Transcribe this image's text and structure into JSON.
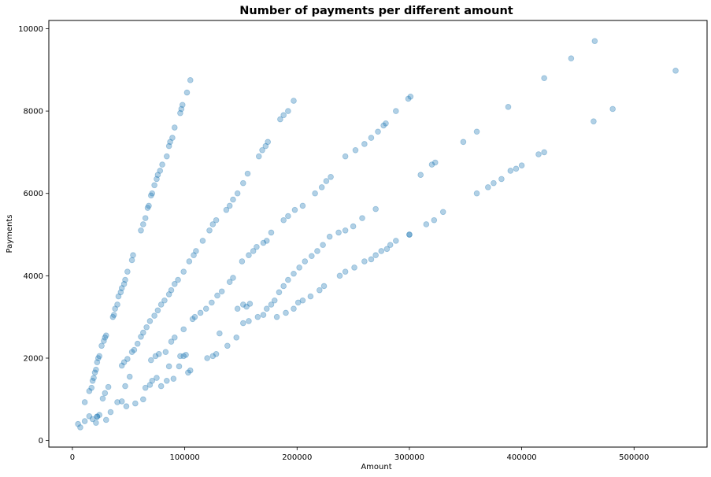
{
  "chart_data": {
    "type": "scatter",
    "title": "Number of payments per different amount",
    "xlabel": "Amount",
    "ylabel": "Payments",
    "xlim": [
      -21000,
      565000
    ],
    "ylim": [
      -160,
      10200
    ],
    "xticks": [
      0,
      100000,
      200000,
      300000,
      400000,
      500000
    ],
    "yticks": [
      0,
      2000,
      4000,
      6000,
      8000,
      10000
    ],
    "grid": false,
    "legend": "none",
    "point_color": "#1f77b4",
    "point_alpha": 0.35,
    "series": [
      {
        "points": [
          [
            5000,
            400
          ],
          [
            7000,
            320
          ],
          [
            11000,
            470
          ],
          [
            15000,
            590
          ],
          [
            18000,
            520
          ],
          [
            21000,
            430
          ],
          [
            22000,
            580
          ],
          [
            24000,
            620
          ],
          [
            11000,
            930
          ],
          [
            15000,
            1200
          ],
          [
            17000,
            1280
          ],
          [
            18000,
            1450
          ],
          [
            19000,
            1520
          ],
          [
            20000,
            1650
          ],
          [
            21000,
            1720
          ],
          [
            22000,
            1900
          ],
          [
            23000,
            2000
          ],
          [
            24000,
            2050
          ],
          [
            26000,
            2300
          ],
          [
            28000,
            2420
          ],
          [
            29000,
            2500
          ],
          [
            30000,
            2550
          ],
          [
            36000,
            3000
          ],
          [
            37000,
            3050
          ],
          [
            38000,
            3200
          ],
          [
            40000,
            3300
          ],
          [
            41000,
            3500
          ],
          [
            43000,
            3600
          ],
          [
            44000,
            3700
          ],
          [
            46000,
            3800
          ],
          [
            47000,
            3900
          ],
          [
            49000,
            4100
          ],
          [
            53000,
            4380
          ],
          [
            54000,
            4500
          ],
          [
            61000,
            5100
          ],
          [
            63000,
            5250
          ],
          [
            65000,
            5400
          ],
          [
            67000,
            5650
          ],
          [
            68000,
            5700
          ],
          [
            70000,
            5950
          ],
          [
            71000,
            6000
          ],
          [
            73000,
            6200
          ],
          [
            75000,
            6350
          ],
          [
            76000,
            6450
          ],
          [
            78000,
            6550
          ],
          [
            80000,
            6700
          ],
          [
            84000,
            6900
          ],
          [
            86000,
            7150
          ],
          [
            87000,
            7250
          ],
          [
            89000,
            7350
          ],
          [
            91000,
            7600
          ],
          [
            96000,
            7950
          ],
          [
            97000,
            8050
          ],
          [
            98000,
            8150
          ],
          [
            102000,
            8450
          ],
          [
            105000,
            8750
          ]
        ]
      },
      {
        "points": [
          [
            22000,
            580
          ],
          [
            27000,
            1020
          ],
          [
            29000,
            1150
          ],
          [
            32000,
            1300
          ],
          [
            34000,
            690
          ],
          [
            30000,
            500
          ],
          [
            44000,
            950
          ],
          [
            47000,
            1320
          ],
          [
            48000,
            830
          ],
          [
            51000,
            1550
          ],
          [
            53000,
            2150
          ],
          [
            55000,
            2200
          ],
          [
            58000,
            2350
          ],
          [
            61000,
            2520
          ],
          [
            63000,
            2620
          ],
          [
            66000,
            2750
          ],
          [
            69000,
            2900
          ],
          [
            73000,
            3030
          ],
          [
            76000,
            3160
          ],
          [
            79000,
            3300
          ],
          [
            82000,
            3400
          ],
          [
            86000,
            3550
          ],
          [
            88000,
            3650
          ],
          [
            91000,
            3800
          ],
          [
            94000,
            3900
          ],
          [
            99000,
            4100
          ],
          [
            104000,
            4350
          ],
          [
            108000,
            4500
          ],
          [
            110000,
            4600
          ],
          [
            116000,
            4850
          ],
          [
            122000,
            5100
          ],
          [
            125000,
            5250
          ],
          [
            128000,
            5350
          ],
          [
            137000,
            5600
          ],
          [
            140000,
            5700
          ],
          [
            143000,
            5850
          ],
          [
            147000,
            6000
          ],
          [
            152000,
            6250
          ],
          [
            156000,
            6480
          ],
          [
            166000,
            6900
          ],
          [
            169000,
            7050
          ],
          [
            172000,
            7150
          ],
          [
            174000,
            7250
          ],
          [
            185000,
            7800
          ],
          [
            188000,
            7900
          ],
          [
            192000,
            8000
          ],
          [
            197000,
            8250
          ],
          [
            44000,
            1820
          ],
          [
            46000,
            1900
          ],
          [
            49000,
            1980
          ]
        ]
      },
      {
        "points": [
          [
            40000,
            930
          ],
          [
            56000,
            900
          ],
          [
            63000,
            1000
          ],
          [
            65000,
            1280
          ],
          [
            69000,
            1350
          ],
          [
            71000,
            1450
          ],
          [
            75000,
            1520
          ],
          [
            79000,
            1320
          ],
          [
            84000,
            1450
          ],
          [
            86000,
            1800
          ],
          [
            90000,
            1500
          ],
          [
            96000,
            2050
          ],
          [
            99000,
            2050
          ],
          [
            101000,
            2080
          ],
          [
            95000,
            1800
          ],
          [
            103000,
            1650
          ],
          [
            105000,
            1700
          ],
          [
            70000,
            1950
          ],
          [
            74000,
            2050
          ],
          [
            77000,
            2100
          ],
          [
            83000,
            2150
          ],
          [
            88000,
            2400
          ],
          [
            91000,
            2500
          ],
          [
            99000,
            2700
          ],
          [
            107000,
            2950
          ],
          [
            109000,
            3000
          ],
          [
            114000,
            3100
          ],
          [
            119000,
            3200
          ],
          [
            124000,
            3350
          ],
          [
            129000,
            3520
          ],
          [
            133000,
            3620
          ],
          [
            140000,
            3850
          ],
          [
            143000,
            3950
          ],
          [
            151000,
            4350
          ],
          [
            157000,
            4500
          ],
          [
            161000,
            4600
          ],
          [
            164000,
            4700
          ],
          [
            170000,
            4800
          ],
          [
            173000,
            4850
          ],
          [
            177000,
            5050
          ],
          [
            188000,
            5350
          ],
          [
            192000,
            5450
          ],
          [
            198000,
            5600
          ],
          [
            205000,
            5700
          ],
          [
            216000,
            6000
          ],
          [
            222000,
            6150
          ],
          [
            226000,
            6300
          ],
          [
            230000,
            6400
          ],
          [
            243000,
            6900
          ],
          [
            252000,
            7050
          ],
          [
            260000,
            7200
          ],
          [
            266000,
            7350
          ],
          [
            272000,
            7500
          ],
          [
            277000,
            7650
          ],
          [
            279000,
            7700
          ],
          [
            288000,
            8000
          ],
          [
            299000,
            8300
          ],
          [
            301000,
            8350
          ]
        ]
      },
      {
        "points": [
          [
            120000,
            2000
          ],
          [
            125000,
            2050
          ],
          [
            128000,
            2100
          ],
          [
            131000,
            2600
          ],
          [
            138000,
            2300
          ],
          [
            146000,
            2500
          ],
          [
            152000,
            2850
          ],
          [
            157000,
            2900
          ],
          [
            165000,
            3000
          ],
          [
            170000,
            3050
          ],
          [
            173000,
            3200
          ],
          [
            177000,
            3300
          ],
          [
            180000,
            3400
          ],
          [
            184000,
            3600
          ],
          [
            188000,
            3750
          ],
          [
            192000,
            3900
          ],
          [
            197000,
            4050
          ],
          [
            202000,
            4200
          ],
          [
            207000,
            4350
          ],
          [
            213000,
            4480
          ],
          [
            218000,
            4600
          ],
          [
            223000,
            4750
          ],
          [
            229000,
            4950
          ],
          [
            237000,
            5050
          ],
          [
            243000,
            5100
          ],
          [
            250000,
            5200
          ],
          [
            258000,
            5400
          ],
          [
            270000,
            5620
          ],
          [
            300000,
            5000
          ],
          [
            310000,
            6450
          ],
          [
            320000,
            6700
          ],
          [
            323000,
            6750
          ],
          [
            348000,
            7250
          ],
          [
            360000,
            7500
          ],
          [
            388000,
            8100
          ],
          [
            420000,
            8800
          ],
          [
            444000,
            9280
          ],
          [
            465000,
            9700
          ],
          [
            147000,
            3200
          ],
          [
            152000,
            3300
          ],
          [
            155000,
            3250
          ],
          [
            158000,
            3320
          ]
        ]
      },
      {
        "points": [
          [
            182000,
            3000
          ],
          [
            190000,
            3100
          ],
          [
            197000,
            3200
          ],
          [
            201000,
            3350
          ],
          [
            205000,
            3400
          ],
          [
            212000,
            3500
          ],
          [
            220000,
            3650
          ],
          [
            224000,
            3750
          ],
          [
            238000,
            4000
          ],
          [
            243000,
            4100
          ],
          [
            251000,
            4200
          ],
          [
            260000,
            4350
          ],
          [
            266000,
            4400
          ],
          [
            270000,
            4500
          ],
          [
            275000,
            4600
          ],
          [
            280000,
            4650
          ],
          [
            283000,
            4750
          ],
          [
            288000,
            4850
          ],
          [
            300000,
            5000
          ],
          [
            315000,
            5250
          ],
          [
            322000,
            5350
          ],
          [
            330000,
            5550
          ],
          [
            360000,
            6000
          ],
          [
            370000,
            6150
          ],
          [
            375000,
            6250
          ],
          [
            382000,
            6350
          ],
          [
            390000,
            6550
          ],
          [
            395000,
            6600
          ],
          [
            400000,
            6680
          ],
          [
            415000,
            6950
          ],
          [
            420000,
            7000
          ],
          [
            464000,
            7750
          ],
          [
            481000,
            8050
          ],
          [
            537000,
            8980
          ]
        ]
      }
    ]
  }
}
